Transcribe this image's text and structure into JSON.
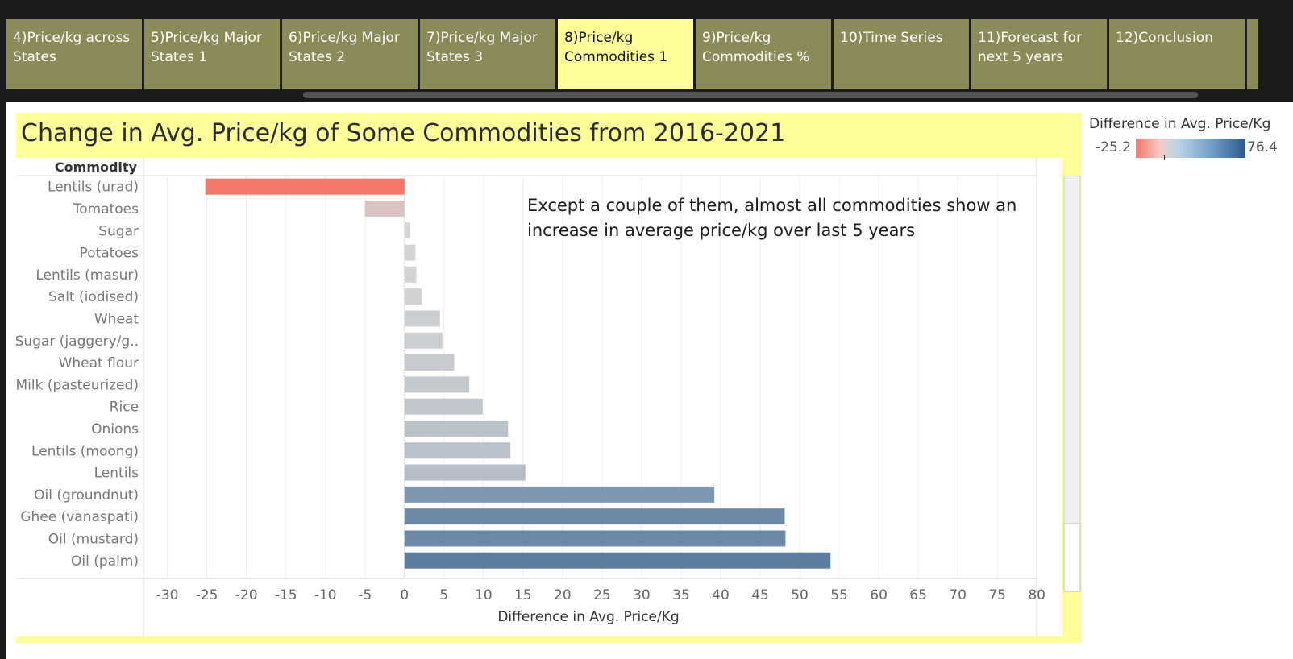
{
  "tabs": [
    {
      "label": "4)Price/kg across States",
      "active": false
    },
    {
      "label": "5)Price/kg Major States 1",
      "active": false
    },
    {
      "label": "6)Price/kg Major States 2",
      "active": false
    },
    {
      "label": "7)Price/kg Major States 3",
      "active": false
    },
    {
      "label": "8)Price/kg Commodities 1",
      "active": true
    },
    {
      "label": "9)Price/kg Commodities %",
      "active": false
    },
    {
      "label": "10)Time Series",
      "active": false
    },
    {
      "label": "11)Forecast for next 5 years",
      "active": false
    },
    {
      "label": "12)Conclusion",
      "active": false
    }
  ],
  "annotation": "Except a couple of them, almost all commodities show an increase in average price/kg over last 5 years",
  "legend": {
    "title": "Difference in Avg. Price/Kg",
    "min_label": "-25.2",
    "max_label": "76.4",
    "color_low": "#f4776b",
    "color_mid": "#d6d6d6",
    "color_high": "#2c5a8c"
  },
  "colors": {
    "tab_background": "#8b8b57",
    "tab_active": "#ffff99",
    "panel_background": "#ffff99"
  },
  "chart_data": {
    "type": "bar",
    "orientation": "horizontal",
    "title": "Change in Avg. Price/kg of Some Commodities from 2016-2021",
    "row_header": "Commodity",
    "xlabel": "Difference in Avg. Price/Kg",
    "xlim": [
      -32,
      81
    ],
    "x_ticks": [
      -30,
      -25,
      -20,
      -15,
      -10,
      -5,
      0,
      5,
      10,
      15,
      20,
      25,
      30,
      35,
      40,
      45,
      50,
      55,
      60,
      65,
      70,
      75,
      80
    ],
    "grid": true,
    "color_range": [
      -25.2,
      76.4
    ],
    "categories": [
      "Lentils (urad)",
      "Tomatoes",
      "Sugar",
      "Potatoes",
      "Lentils (masur)",
      "Salt (iodised)",
      "Wheat",
      "Sugar (jaggery/g..",
      "Wheat flour",
      "Milk (pasteurized)",
      "Rice",
      "Onions",
      "Lentils (moong)",
      "Lentils",
      "Oil (groundnut)",
      "Ghee (vanaspati)",
      "Oil (mustard)",
      "Oil (palm)"
    ],
    "values": [
      -25.2,
      -5.0,
      0.7,
      1.4,
      1.5,
      2.2,
      4.5,
      4.8,
      6.3,
      8.2,
      9.9,
      13.1,
      13.4,
      15.3,
      39.2,
      48.1,
      48.2,
      53.9
    ]
  }
}
